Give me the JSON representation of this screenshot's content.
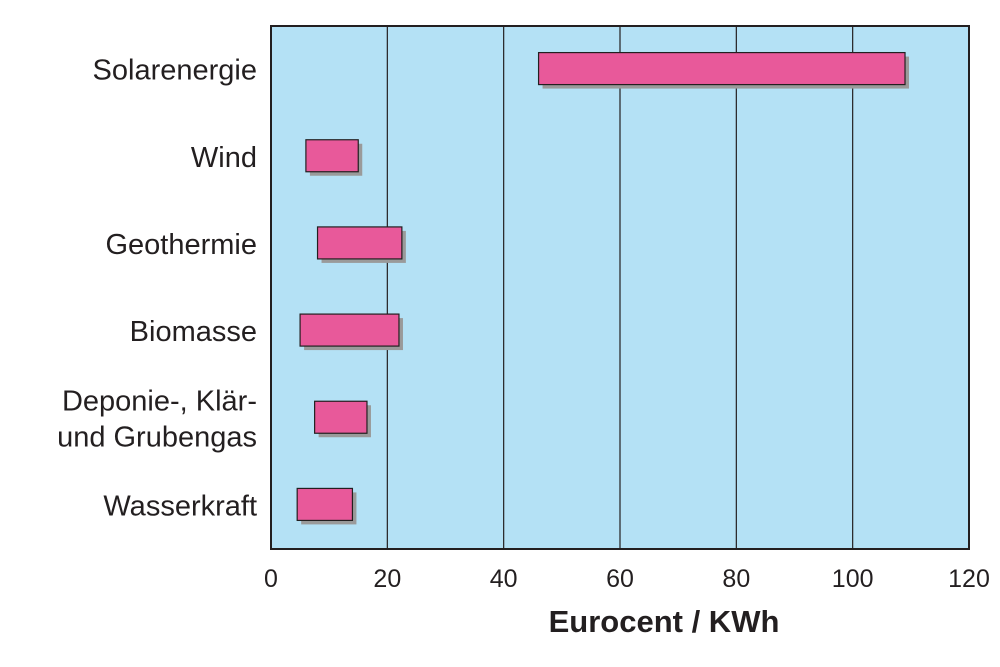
{
  "chart_data": {
    "type": "bar",
    "orientation": "horizontal",
    "title": "",
    "xlabel": "Eurocent / KWh",
    "ylabel": "",
    "xlim": [
      0,
      120
    ],
    "xticks": [
      0,
      20,
      40,
      60,
      80,
      100,
      120
    ],
    "grid": true,
    "categories": [
      [
        "Solarenergie"
      ],
      [
        "Wind"
      ],
      [
        "Geothermie"
      ],
      [
        "Biomasse"
      ],
      [
        "Deponie-, Klär-",
        "und Grubengas"
      ],
      [
        "Wasserkraft"
      ]
    ],
    "series": [
      {
        "ranges": [
          [
            46,
            109
          ],
          [
            6,
            15
          ],
          [
            8,
            22.5
          ],
          [
            5,
            22
          ],
          [
            7.5,
            16.5
          ],
          [
            4.5,
            14
          ]
        ]
      }
    ],
    "colors": {
      "plot_background": "#b4e1f5",
      "bar_fill": "#e8599a",
      "bar_shadow": "#9a9a9a",
      "axis": "#231f20"
    }
  }
}
